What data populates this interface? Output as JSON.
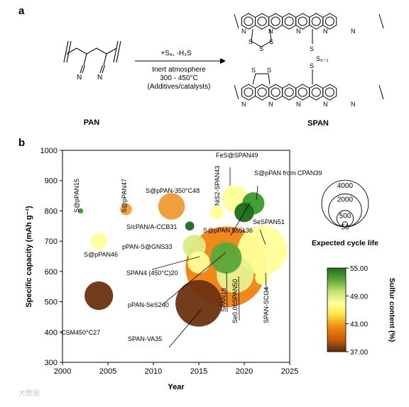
{
  "panel_a": {
    "label": "a",
    "reactant": "PAN",
    "product": "SPAN",
    "reagents": "+S₈, -H₂S",
    "condition_1": "Inert atmosphere",
    "condition_2": "300 - 450°C",
    "condition_3": "(Additives/catalysts)",
    "pan_atoms": [
      "N",
      "N"
    ],
    "s_chain_label": "S₀₋₁",
    "atom_S": "S",
    "atom_N": "N"
  },
  "panel_b": {
    "label": "b",
    "watermark": "大数据"
  },
  "chart_data": {
    "type": "scatter",
    "subtype": "bubble",
    "xlabel": "Year",
    "ylabel": "Specific capacity (mAh g⁻¹)",
    "xlim": [
      2000,
      2025
    ],
    "ylim": [
      300,
      1000
    ],
    "xticks": [
      "2000",
      "2005",
      "2010",
      "2015",
      "2020",
      "2025"
    ],
    "yticks": [
      "300",
      "400",
      "500",
      "600",
      "700",
      "800",
      "900",
      "1000"
    ],
    "size_legend": {
      "title": "Expected cycle life",
      "values": [
        4000,
        2000,
        500,
        50
      ]
    },
    "colorbar": {
      "title": "Sulfur content (%)",
      "ticks": [
        "55.00",
        "49.00",
        "43.00",
        "37.00"
      ],
      "range": [
        37,
        55
      ],
      "colors": [
        "#5a2d0c",
        "#c45a0a",
        "#f08a10",
        "#ffe84a",
        "#ffffa0",
        "#c4e070",
        "#5aa83a",
        "#1a6e1a"
      ]
    },
    "points": [
      {
        "label": "S@pPAN15",
        "x": 2002,
        "y": 800,
        "life": 50,
        "s": 54,
        "color": "#3a9a2a"
      },
      {
        "label": "S@pPAN46",
        "x": 2004,
        "y": 700,
        "life": 500,
        "s": 47,
        "color": "#ffff99"
      },
      {
        "label": "CSM450°C27",
        "x": 2004,
        "y": 520,
        "life": 1500,
        "s": 38,
        "color": "#6b3210"
      },
      {
        "label": "S@pPAN47",
        "x": 2007,
        "y": 805,
        "life": 250,
        "s": 42,
        "color": "#f5a030"
      },
      {
        "label": "S@pPAN-350°C48",
        "x": 2012,
        "y": 815,
        "life": 1300,
        "s": 41,
        "color": "#f09a30"
      },
      {
        "label": "S/cPAN/A-CCB31",
        "x": 2014,
        "y": 750,
        "life": 150,
        "s": 55,
        "color": "#1a6e1a"
      },
      {
        "label": "pPAN-S@GNS33",
        "x": 2014.5,
        "y": 683,
        "life": 1000,
        "s": 49,
        "color": "#ddeb88"
      },
      {
        "label": "SPAN4 (450°C)20",
        "x": 2015,
        "y": 630,
        "life": 900,
        "s": 47,
        "color": "#ffff99"
      },
      {
        "label": "SPAN-VA35",
        "x": 2015,
        "y": 495,
        "life": 4000,
        "s": 37,
        "color": "#6b3210"
      },
      {
        "label": "NiS2-SPAN43",
        "x": 2017,
        "y": 795,
        "life": 350,
        "s": 47,
        "color": "#ffff99"
      },
      {
        "label": "SPAN18",
        "x": 2018,
        "y": 615,
        "life": 12000,
        "s": 42,
        "color": "#f08210"
      },
      {
        "label": "pPAN-SeS240",
        "x": 2018,
        "y": 645,
        "life": 1800,
        "s": 52,
        "color": "#5aa83a"
      },
      {
        "label": "FeS@SPAN49",
        "x": 2019,
        "y": 840,
        "life": 1300,
        "s": 47,
        "color": "#ffff99"
      },
      {
        "label": "Se0.06SPAN50",
        "x": 2019,
        "y": 590,
        "life": 2500,
        "s": 48,
        "color": "#e8f090"
      },
      {
        "label": "S@pPAN 555k36",
        "x": 2020,
        "y": 795,
        "life": 700,
        "s": 55,
        "color": "#1a6e1a"
      },
      {
        "label": "S@pPAN from CPAN39",
        "x": 2021,
        "y": 825,
        "life": 900,
        "s": 54,
        "color": "#3a9a2a"
      },
      {
        "label": "SeSPAN51",
        "x": 2022,
        "y": 670,
        "life": 4500,
        "s": 47,
        "color": "#ffff99"
      },
      {
        "label": "SPAN-SCl34",
        "x": 2022,
        "y": 580,
        "life": 400,
        "s": 47,
        "color": "#ffff99"
      }
    ]
  }
}
